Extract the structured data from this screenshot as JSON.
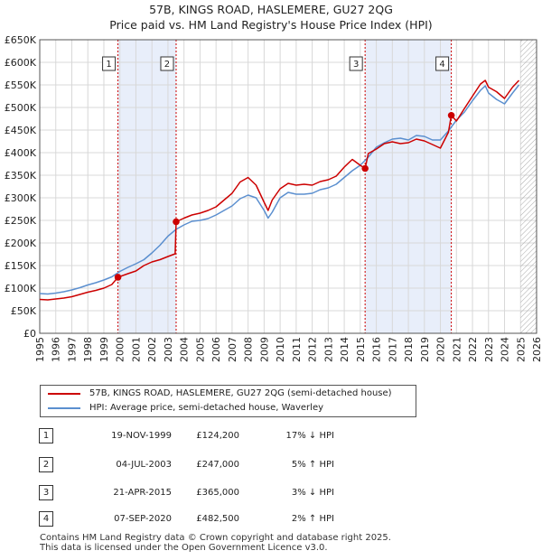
{
  "title_line1": "57B, KINGS ROAD, HASLEMERE, GU27 2QG",
  "title_line2": "Price paid vs. HM Land Registry's House Price Index (HPI)",
  "chart_data": {
    "type": "line",
    "title": "57B, KINGS ROAD, HASLEMERE, GU27 2QG - Price paid vs. HM Land Registry's House Price Index (HPI)",
    "xlabel": "",
    "ylabel": "",
    "xlim": [
      1995,
      2026
    ],
    "ylim": [
      0,
      650000
    ],
    "x_ticks": [
      1995,
      1996,
      1997,
      1998,
      1999,
      2000,
      2001,
      2002,
      2003,
      2004,
      2005,
      2006,
      2007,
      2008,
      2009,
      2010,
      2011,
      2012,
      2013,
      2014,
      2015,
      2016,
      2017,
      2018,
      2019,
      2020,
      2021,
      2022,
      2023,
      2024,
      2025,
      2026
    ],
    "y_ticks": [
      0,
      50000,
      100000,
      150000,
      200000,
      250000,
      300000,
      350000,
      400000,
      450000,
      500000,
      550000,
      600000,
      650000
    ],
    "y_tick_labels": [
      "£0",
      "£50K",
      "£100K",
      "£150K",
      "£200K",
      "£250K",
      "£300K",
      "£350K",
      "£400K",
      "£450K",
      "£500K",
      "£550K",
      "£600K",
      "£650K"
    ],
    "grid": true,
    "series": [
      {
        "name": "57B, KINGS ROAD, HASLEMERE, GU27 2QG (semi-detached house)",
        "color": "#cc0000",
        "x": [
          1995.0,
          1995.5,
          1996.0,
          1996.5,
          1997.0,
          1997.5,
          1998.0,
          1998.5,
          1999.0,
          1999.5,
          1999.88,
          2000.5,
          2001.0,
          2001.5,
          2002.0,
          2002.5,
          2003.0,
          2003.45,
          2003.51,
          2004.0,
          2004.5,
          2005.0,
          2005.5,
          2006.0,
          2006.5,
          2007.0,
          2007.5,
          2008.0,
          2008.5,
          2009.0,
          2009.25,
          2009.5,
          2010.0,
          2010.5,
          2011.0,
          2011.5,
          2012.0,
          2012.5,
          2013.0,
          2013.5,
          2014.0,
          2014.5,
          2015.0,
          2015.3,
          2015.5,
          2016.0,
          2016.5,
          2017.0,
          2017.5,
          2018.0,
          2018.5,
          2019.0,
          2019.5,
          2020.0,
          2020.5,
          2020.68,
          2021.0,
          2021.5,
          2022.0,
          2022.5,
          2022.8,
          2023.0,
          2023.5,
          2024.0,
          2024.5,
          2024.9
        ],
        "y": [
          75000,
          74000,
          76000,
          78000,
          81000,
          86000,
          91000,
          95000,
          100000,
          108000,
          124200,
          132000,
          138000,
          150000,
          158000,
          163000,
          170000,
          176000,
          247000,
          255000,
          262000,
          266000,
          272000,
          280000,
          295000,
          310000,
          335000,
          345000,
          328000,
          290000,
          272000,
          295000,
          320000,
          332000,
          328000,
          330000,
          328000,
          336000,
          340000,
          348000,
          368000,
          385000,
          372000,
          365000,
          398000,
          408000,
          420000,
          424000,
          420000,
          422000,
          430000,
          426000,
          418000,
          410000,
          445000,
          482500,
          470000,
          498000,
          525000,
          552000,
          560000,
          545000,
          535000,
          520000,
          545000,
          560000
        ]
      },
      {
        "name": "HPI: Average price, semi-detached house, Waverley",
        "color": "#5b8fcf",
        "x": [
          1995.0,
          1995.5,
          1996.0,
          1996.5,
          1997.0,
          1997.5,
          1998.0,
          1998.5,
          1999.0,
          1999.5,
          2000.0,
          2000.5,
          2001.0,
          2001.5,
          2002.0,
          2002.5,
          2003.0,
          2003.5,
          2004.0,
          2004.5,
          2005.0,
          2005.5,
          2006.0,
          2006.5,
          2007.0,
          2007.5,
          2008.0,
          2008.5,
          2009.0,
          2009.25,
          2009.5,
          2010.0,
          2010.5,
          2011.0,
          2011.5,
          2012.0,
          2012.5,
          2013.0,
          2013.5,
          2014.0,
          2014.5,
          2015.0,
          2015.5,
          2016.0,
          2016.5,
          2017.0,
          2017.5,
          2018.0,
          2018.5,
          2019.0,
          2019.5,
          2020.0,
          2020.5,
          2021.0,
          2021.5,
          2022.0,
          2022.5,
          2022.8,
          2023.0,
          2023.5,
          2024.0,
          2024.5,
          2024.9
        ],
        "y": [
          88000,
          87000,
          89000,
          92000,
          96000,
          101000,
          107000,
          112000,
          118000,
          125000,
          137000,
          146000,
          154000,
          163000,
          178000,
          195000,
          215000,
          230000,
          240000,
          248000,
          250000,
          254000,
          262000,
          272000,
          282000,
          298000,
          306000,
          300000,
          272000,
          255000,
          268000,
          300000,
          312000,
          308000,
          308000,
          310000,
          318000,
          322000,
          330000,
          345000,
          360000,
          372000,
          390000,
          412000,
          422000,
          430000,
          432000,
          428000,
          438000,
          436000,
          428000,
          428000,
          448000,
          472000,
          490000,
          515000,
          538000,
          548000,
          532000,
          518000,
          508000,
          532000,
          550000
        ]
      }
    ],
    "annotations": [
      {
        "label": "1",
        "x": 1999.88,
        "y": 124200
      },
      {
        "label": "2",
        "x": 2003.51,
        "y": 247000
      },
      {
        "label": "3",
        "x": 2015.3,
        "y": 365000
      },
      {
        "label": "4",
        "x": 2020.68,
        "y": 482500
      }
    ],
    "shaded_periods": [
      [
        1999.88,
        2003.51
      ],
      [
        2015.3,
        2020.68
      ]
    ],
    "forecast_hatch_start": 2025.0
  },
  "legend": {
    "items": [
      {
        "label": "57B, KINGS ROAD, HASLEMERE, GU27 2QG (semi-detached house)",
        "color": "#cc0000"
      },
      {
        "label": "HPI: Average price, semi-detached house, Waverley",
        "color": "#5b8fcf"
      }
    ]
  },
  "sales": [
    {
      "num": "1",
      "date": "19-NOV-1999",
      "price": "£124,200",
      "hpi": "17% ↓ HPI"
    },
    {
      "num": "2",
      "date": "04-JUL-2003",
      "price": "£247,000",
      "hpi": "5% ↑ HPI"
    },
    {
      "num": "3",
      "date": "21-APR-2015",
      "price": "£365,000",
      "hpi": "3% ↓ HPI"
    },
    {
      "num": "4",
      "date": "07-SEP-2020",
      "price": "£482,500",
      "hpi": "2% ↑ HPI"
    }
  ],
  "footer_line1": "Contains HM Land Registry data © Crown copyright and database right 2025.",
  "footer_line2": "This data is licensed under the Open Government Licence v3.0."
}
